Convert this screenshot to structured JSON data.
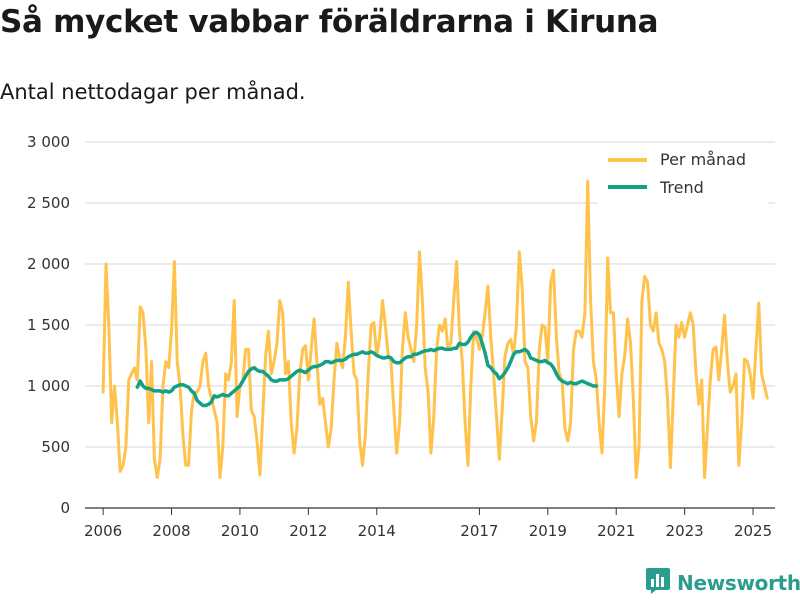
{
  "chart_data": {
    "type": "line",
    "title": "Så mycket vabbar föräldrarna i Kiruna",
    "subtitle": "Antal nettodagar per månad.",
    "xlabel": "",
    "ylabel": "",
    "ylim": [
      0,
      3000
    ],
    "yticks": [
      0,
      500,
      1000,
      1500,
      2000,
      2500,
      3000
    ],
    "ytick_labels": [
      "0",
      "500",
      "1 000",
      "1 500",
      "2 000",
      "2 500",
      "3 000"
    ],
    "xlim": [
      2005.5,
      2025.7
    ],
    "xticks": [
      2006,
      2008,
      2010,
      2012,
      2014,
      2017,
      2019,
      2021,
      2023,
      2025
    ],
    "grid": true,
    "legend_position": "top-right",
    "series": [
      {
        "name": "Per månad",
        "color": "#ffc34d",
        "x_start": 2006.0,
        "x_step": 0.0833333,
        "values": [
          950,
          2000,
          1500,
          700,
          1000,
          700,
          300,
          350,
          500,
          1050,
          1100,
          1150,
          1050,
          1650,
          1600,
          1300,
          700,
          1200,
          400,
          250,
          400,
          1000,
          1200,
          1150,
          1450,
          2020,
          1200,
          1000,
          600,
          350,
          350,
          800,
          950,
          950,
          1000,
          1200,
          1270,
          1000,
          900,
          800,
          700,
          250,
          500,
          1100,
          1050,
          1200,
          1700,
          750,
          1000,
          1050,
          1300,
          1300,
          800,
          750,
          550,
          270,
          750,
          1250,
          1450,
          1100,
          1200,
          1350,
          1700,
          1600,
          1100,
          1200,
          700,
          450,
          650,
          1100,
          1300,
          1330,
          1050,
          1300,
          1550,
          1200,
          850,
          900,
          700,
          500,
          650,
          1050,
          1350,
          1220,
          1150,
          1400,
          1850,
          1450,
          1100,
          1050,
          550,
          350,
          600,
          1100,
          1500,
          1520,
          1250,
          1400,
          1700,
          1500,
          1250,
          1200,
          800,
          450,
          700,
          1300,
          1600,
          1400,
          1300,
          1200,
          1500,
          2100,
          1700,
          1150,
          950,
          450,
          750,
          1300,
          1500,
          1450,
          1550,
          1300,
          1350,
          1700,
          2020,
          1450,
          1200,
          700,
          350,
          1000,
          1450,
          1400,
          1300,
          1400,
          1600,
          1820,
          1400,
          1100,
          750,
          400,
          800,
          1250,
          1350,
          1380,
          1250,
          1500,
          2100,
          1800,
          1200,
          1150,
          750,
          550,
          700,
          1300,
          1500,
          1480,
          1200,
          1850,
          1950,
          1400,
          1100,
          1050,
          650,
          550,
          700,
          1300,
          1450,
          1450,
          1400,
          1600,
          2680,
          1700,
          1200,
          1050,
          700,
          450,
          1000,
          2050,
          1600,
          1600,
          1100,
          750,
          1100,
          1250,
          1550,
          1350,
          900,
          250,
          500,
          1700,
          1900,
          1850,
          1500,
          1450,
          1600,
          1350,
          1300,
          1200,
          900,
          330,
          900,
          1500,
          1400,
          1520,
          1400,
          1500,
          1600,
          1500,
          1100,
          850,
          1050,
          250,
          650,
          1050,
          1300,
          1320,
          1050,
          1300,
          1580,
          1200,
          950,
          1000,
          1100,
          350,
          700,
          1220,
          1200,
          1100,
          900,
          1300,
          1680,
          1100,
          1000,
          900
        ]
      },
      {
        "name": "Trend",
        "color": "#13a086",
        "x_start": 2007.0,
        "x_step": 0.0833333,
        "values": [
          990,
          1040,
          1000,
          980,
          980,
          970,
          960,
          960,
          960,
          950,
          960,
          950,
          960,
          990,
          1000,
          1010,
          1010,
          1000,
          990,
          960,
          940,
          880,
          860,
          840,
          840,
          850,
          870,
          920,
          910,
          920,
          930,
          920,
          920,
          940,
          960,
          980,
          1000,
          1040,
          1080,
          1120,
          1140,
          1150,
          1130,
          1120,
          1120,
          1100,
          1080,
          1050,
          1040,
          1040,
          1050,
          1050,
          1050,
          1060,
          1080,
          1100,
          1120,
          1130,
          1120,
          1110,
          1130,
          1150,
          1160,
          1160,
          1170,
          1180,
          1200,
          1200,
          1190,
          1200,
          1210,
          1210,
          1210,
          1220,
          1240,
          1250,
          1260,
          1260,
          1270,
          1280,
          1270,
          1270,
          1280,
          1270,
          1250,
          1240,
          1230,
          1230,
          1240,
          1230,
          1200,
          1190,
          1190,
          1210,
          1230,
          1240,
          1240,
          1260,
          1260,
          1270,
          1280,
          1290,
          1290,
          1300,
          1290,
          1300,
          1310,
          1310,
          1300,
          1300,
          1300,
          1310,
          1310,
          1350,
          1340,
          1340,
          1360,
          1400,
          1430,
          1440,
          1420,
          1350,
          1270,
          1170,
          1150,
          1120,
          1100,
          1060,
          1080,
          1110,
          1150,
          1200,
          1260,
          1280,
          1280,
          1290,
          1300,
          1280,
          1230,
          1220,
          1210,
          1200,
          1200,
          1210,
          1190,
          1180,
          1150,
          1100,
          1060,
          1040,
          1030,
          1020,
          1030,
          1020,
          1020,
          1030,
          1040,
          1030,
          1020,
          1010,
          1000,
          1000
        ]
      }
    ]
  },
  "brand": {
    "name": "Newsworthy",
    "logo_icon": "bar-chart-logo-icon",
    "color": "#2a9d8f"
  }
}
